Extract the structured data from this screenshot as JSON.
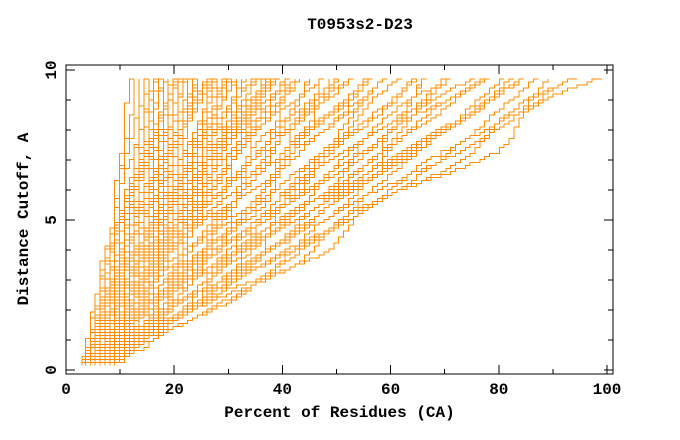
{
  "window": {
    "background": "#ffffff"
  },
  "chart_data": {
    "type": "line",
    "title": "T0953s2-D23",
    "xlabel": "Percent of Residues (CA)",
    "ylabel": "Distance Cutoff, A",
    "xlim": [
      0,
      101.1
    ],
    "ylim": [
      -0.13,
      10.17
    ],
    "x_major_ticks": [
      0,
      20,
      40,
      60,
      80,
      100
    ],
    "x_minor_ticks": [
      10,
      30,
      50,
      70,
      90
    ],
    "y_major_ticks": [
      0,
      5,
      10
    ],
    "y_minor_ticks": [
      1,
      2,
      3,
      4,
      6,
      7,
      8,
      9
    ],
    "grid": false,
    "legend": "none",
    "line_color": "#FF8C00",
    "axis_color": "#000000",
    "cutoff_range": [
      0.15,
      9.7
    ],
    "percent_quantum": 0.9,
    "curves_note": "Each curve = one model accuracy curve: [percent_at_low_cutoff, percent_at_high_cutoff, shape_exponent]; x = percent of CA residues under distance cutoff y.",
    "curves": [
      [
        4.0,
        12.6,
        1.05
      ],
      [
        4.5,
        13.4,
        0.95
      ],
      [
        3.6,
        14.2,
        1.1
      ],
      [
        5.0,
        15.0,
        1.0
      ],
      [
        4.2,
        15.6,
        0.9
      ],
      [
        5.5,
        16.3,
        1.15
      ],
      [
        3.8,
        17.0,
        1.0
      ],
      [
        6.0,
        17.8,
        0.95
      ],
      [
        4.6,
        18.5,
        1.1
      ],
      [
        5.2,
        19.2,
        1.0
      ],
      [
        3.5,
        19.8,
        0.92
      ],
      [
        6.3,
        20.1,
        1.2
      ],
      [
        4.8,
        20.6,
        1.0
      ],
      [
        5.8,
        21.2,
        0.9
      ],
      [
        3.9,
        21.8,
        1.12
      ],
      [
        6.5,
        22.4,
        0.97
      ],
      [
        4.3,
        23.0,
        1.05
      ],
      [
        5.4,
        23.6,
        0.88
      ],
      [
        7.0,
        24.2,
        1.1
      ],
      [
        4.0,
        24.9,
        1.0
      ],
      [
        5.9,
        25.5,
        0.93
      ],
      [
        3.6,
        26.2,
        1.08
      ],
      [
        6.8,
        26.9,
        0.98
      ],
      [
        4.5,
        27.6,
        1.15
      ],
      [
        5.1,
        28.3,
        0.9
      ],
      [
        7.4,
        29.0,
        1.02
      ],
      [
        4.2,
        29.5,
        0.95
      ],
      [
        6.1,
        29.9,
        1.1
      ],
      [
        3.8,
        30.5,
        0.96
      ],
      [
        5.6,
        31.2,
        1.06
      ],
      [
        7.2,
        31.9,
        0.9
      ],
      [
        4.4,
        32.6,
        1.12
      ],
      [
        6.4,
        33.3,
        0.98
      ],
      [
        3.5,
        34.0,
        1.04
      ],
      [
        5.0,
        34.8,
        0.92
      ],
      [
        7.8,
        35.5,
        1.08
      ],
      [
        4.7,
        36.2,
        0.99
      ],
      [
        6.0,
        37.0,
        1.1
      ],
      [
        3.9,
        37.8,
        0.94
      ],
      [
        5.3,
        38.6,
        1.02
      ],
      [
        8.2,
        39.3,
        0.9
      ],
      [
        4.1,
        39.9,
        1.06
      ],
      [
        5.7,
        40.6,
        0.97
      ],
      [
        3.7,
        41.4,
        1.08
      ],
      [
        6.6,
        42.3,
        0.92
      ],
      [
        4.9,
        43.2,
        1.0
      ],
      [
        7.6,
        44.1,
        1.05
      ],
      [
        4.3,
        45.0,
        0.9
      ],
      [
        5.5,
        46.0,
        1.1
      ],
      [
        3.6,
        47.0,
        0.96
      ],
      [
        6.9,
        48.1,
        1.0
      ],
      [
        4.6,
        49.2,
        0.88
      ],
      [
        8.0,
        49.8,
        1.04
      ],
      [
        5.2,
        50.8,
        0.95
      ],
      [
        3.9,
        52.0,
        1.05
      ],
      [
        6.3,
        53.3,
        0.9
      ],
      [
        4.5,
        54.6,
        1.0
      ],
      [
        7.1,
        56.0,
        0.93
      ],
      [
        5.0,
        57.3,
        1.06
      ],
      [
        3.7,
        58.6,
        0.97
      ],
      [
        6.6,
        59.7,
        0.9
      ],
      [
        4.2,
        60.9,
        1.0
      ],
      [
        5.8,
        62.2,
        0.92
      ],
      [
        3.8,
        63.6,
        1.04
      ],
      [
        6.9,
        65.0,
        0.95
      ],
      [
        4.7,
        66.4,
        0.88
      ],
      [
        5.4,
        67.8,
        1.0
      ],
      [
        7.5,
        69.2,
        0.93
      ],
      [
        4.0,
        70.6,
        0.96
      ],
      [
        5.6,
        72.1,
        0.9
      ],
      [
        3.9,
        73.6,
        1.0
      ],
      [
        6.4,
        75.2,
        0.94
      ],
      [
        4.8,
        76.8,
        0.88
      ],
      [
        5.2,
        78.4,
        0.97
      ],
      [
        4.4,
        80.0,
        0.92
      ],
      [
        6.0,
        81.7,
        0.96
      ],
      [
        3.8,
        83.4,
        0.9
      ],
      [
        5.3,
        85.1,
        0.95
      ],
      [
        4.1,
        86.9,
        0.88
      ],
      [
        6.7,
        88.7,
        0.93
      ],
      [
        4.9,
        90.6,
        0.9
      ],
      [
        3.7,
        92.6,
        0.94
      ],
      [
        5.5,
        94.7,
        0.88
      ],
      [
        4.3,
        97.5,
        0.92
      ],
      [
        4.1,
        15.9,
        1.3
      ],
      [
        5.7,
        17.3,
        1.18
      ],
      [
        4.9,
        18.9,
        1.25
      ],
      [
        6.2,
        20.9,
        1.3
      ],
      [
        3.7,
        22.1,
        1.2
      ],
      [
        5.3,
        23.3,
        1.28
      ],
      [
        4.4,
        24.5,
        1.16
      ],
      [
        6.6,
        25.8,
        1.24
      ],
      [
        3.9,
        27.2,
        1.3
      ],
      [
        5.0,
        28.7,
        1.18
      ],
      [
        4.6,
        30.1,
        1.26
      ],
      [
        6.1,
        31.5,
        1.14
      ],
      [
        3.6,
        32.9,
        1.22
      ],
      [
        5.5,
        34.4,
        1.3
      ],
      [
        4.2,
        35.9,
        1.16
      ],
      [
        6.8,
        37.4,
        1.24
      ],
      [
        3.8,
        38.9,
        1.12
      ],
      [
        5.1,
        40.3,
        1.2
      ],
      [
        4.5,
        41.9,
        1.28
      ],
      [
        5.9,
        43.6,
        1.15
      ],
      [
        3.6,
        44.8,
        1.22
      ],
      [
        4.8,
        33.7,
        1.35
      ],
      [
        5.4,
        26.5,
        1.4
      ],
      [
        4.0,
        21.4,
        1.38
      ]
    ]
  }
}
